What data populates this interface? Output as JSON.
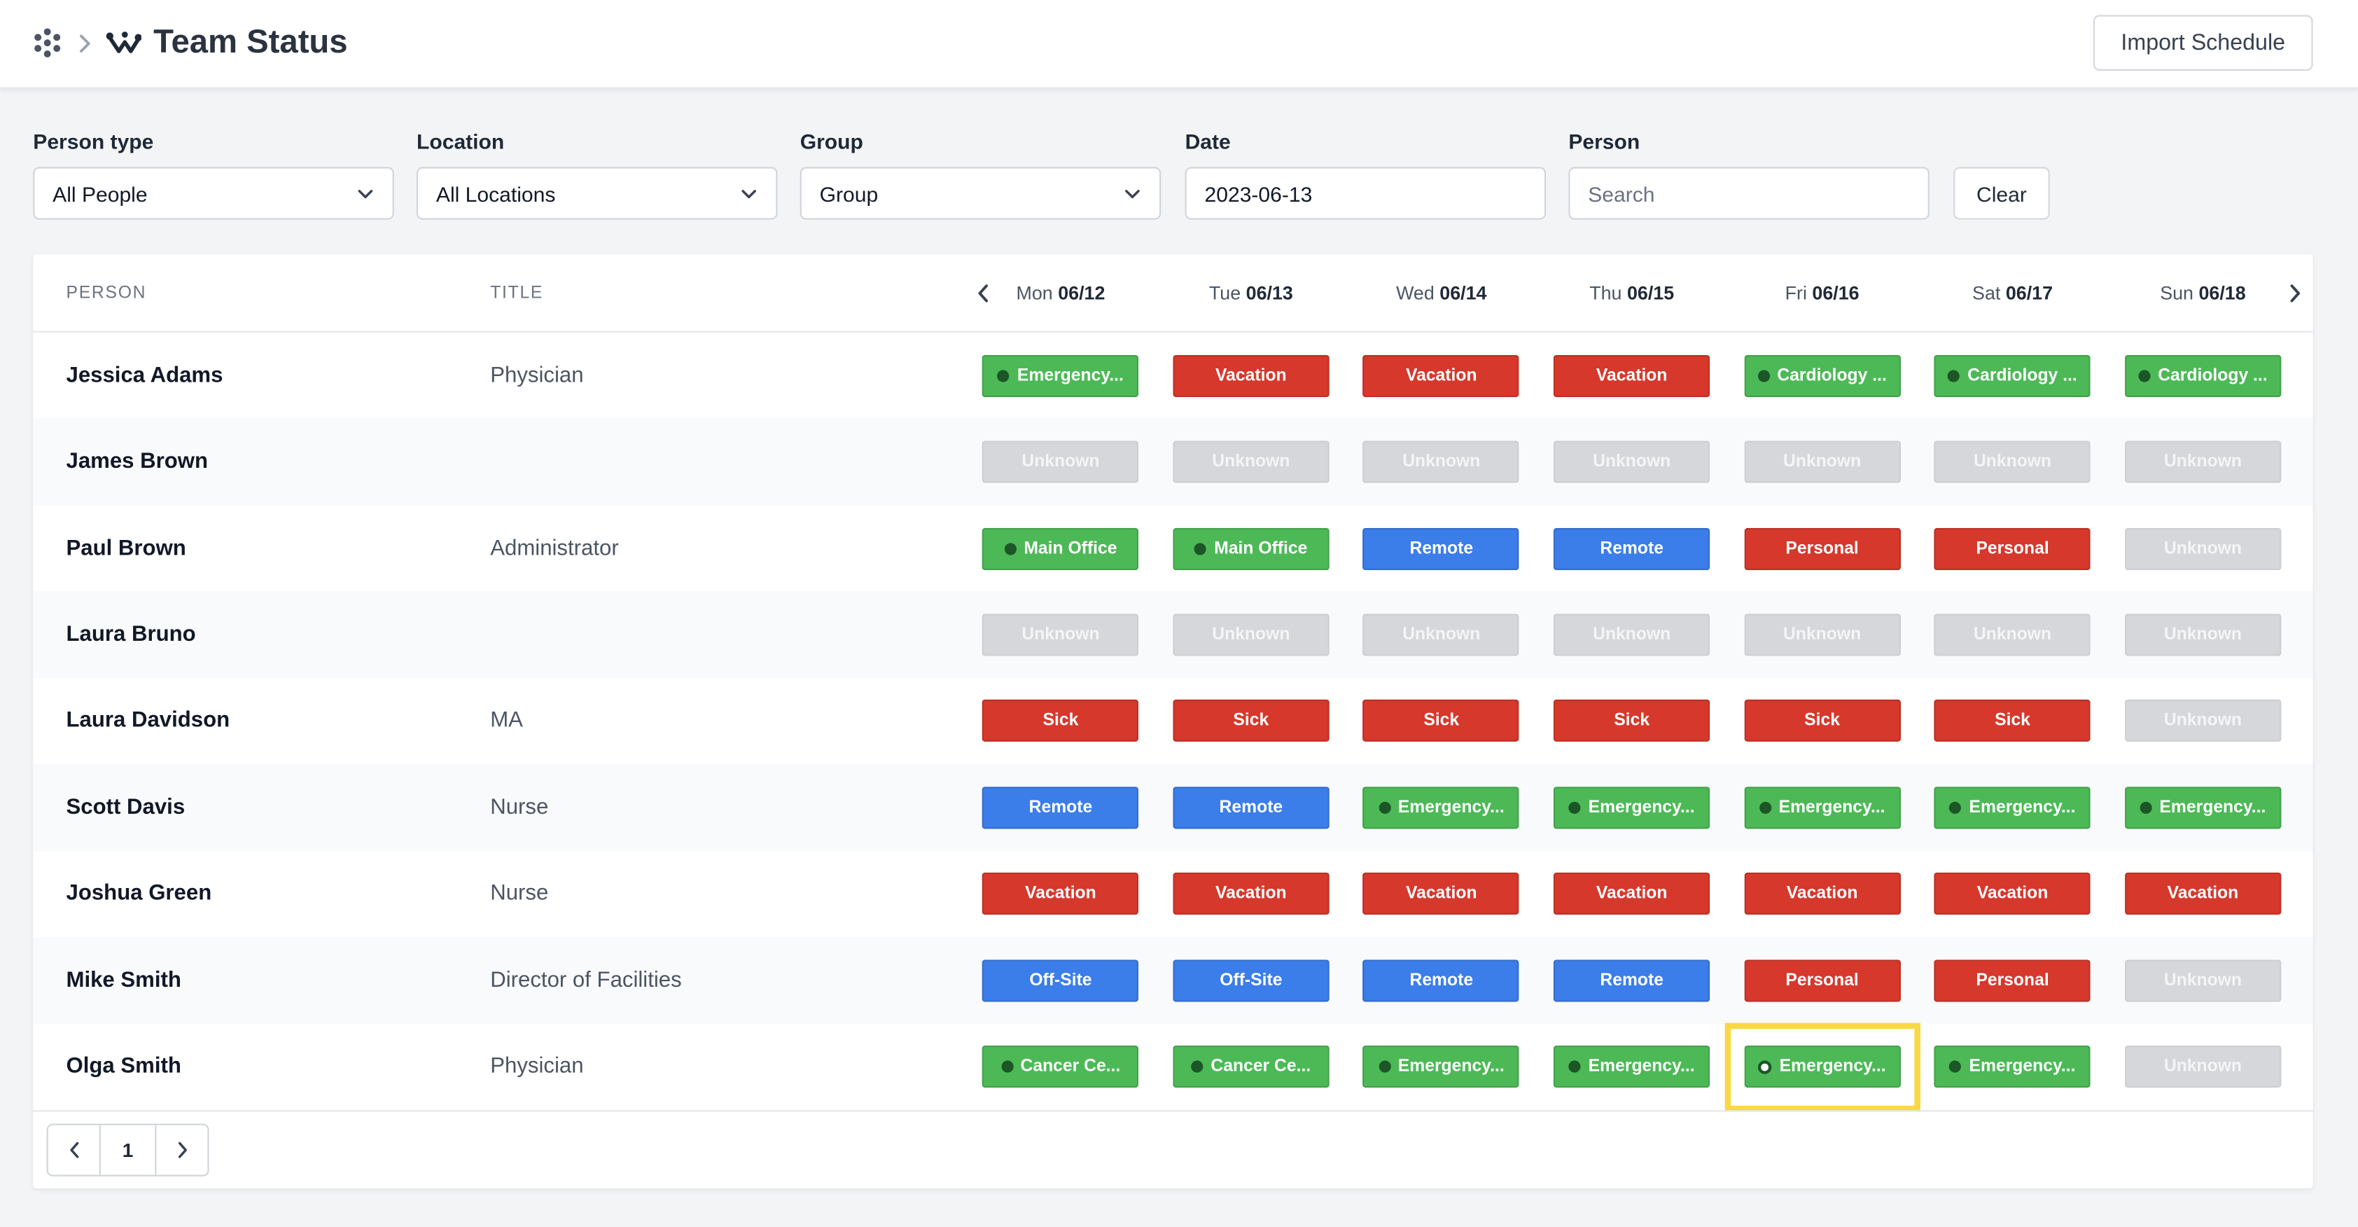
{
  "header": {
    "apps_icon": "grid-dots-icon",
    "breadcrumb_separator_icon": "chevron-right-icon",
    "logo_icon": "team-status-logo-icon",
    "title": "Team Status",
    "import_button": "Import Schedule"
  },
  "filters": {
    "person_type": {
      "label": "Person type",
      "value": "All People"
    },
    "location": {
      "label": "Location",
      "value": "All Locations"
    },
    "group": {
      "label": "Group",
      "value": "Group"
    },
    "date": {
      "label": "Date",
      "value": "2023-06-13"
    },
    "person": {
      "label": "Person",
      "placeholder": "Search"
    },
    "clear_button": "Clear",
    "dropdown_icon": "chevron-down-icon"
  },
  "table": {
    "columns": {
      "person": "PERSON",
      "title": "TITLE"
    },
    "prev_week_icon": "chevron-left-icon",
    "next_week_icon": "chevron-right-icon",
    "days": [
      {
        "day": "Mon",
        "date": "06/12"
      },
      {
        "day": "Tue",
        "date": "06/13"
      },
      {
        "day": "Wed",
        "date": "06/14"
      },
      {
        "day": "Thu",
        "date": "06/15"
      },
      {
        "day": "Fri",
        "date": "06/16"
      },
      {
        "day": "Sat",
        "date": "06/17"
      },
      {
        "day": "Sun",
        "date": "06/18"
      }
    ],
    "rows": [
      {
        "name": "Jessica Adams",
        "title": "Physician",
        "cells": [
          {
            "label": "Emergency...",
            "color": "green"
          },
          {
            "label": "Vacation",
            "color": "red"
          },
          {
            "label": "Vacation",
            "color": "red"
          },
          {
            "label": "Vacation",
            "color": "red"
          },
          {
            "label": "Cardiology ...",
            "color": "green"
          },
          {
            "label": "Cardiology ...",
            "color": "green"
          },
          {
            "label": "Cardiology ...",
            "color": "green"
          }
        ]
      },
      {
        "name": "James Brown",
        "title": "",
        "cells": [
          {
            "label": "Unknown",
            "color": "gray"
          },
          {
            "label": "Unknown",
            "color": "gray"
          },
          {
            "label": "Unknown",
            "color": "gray"
          },
          {
            "label": "Unknown",
            "color": "gray"
          },
          {
            "label": "Unknown",
            "color": "gray"
          },
          {
            "label": "Unknown",
            "color": "gray"
          },
          {
            "label": "Unknown",
            "color": "gray"
          }
        ]
      },
      {
        "name": "Paul Brown",
        "title": "Administrator",
        "cells": [
          {
            "label": "Main Office",
            "color": "green"
          },
          {
            "label": "Main Office",
            "color": "green"
          },
          {
            "label": "Remote",
            "color": "blue"
          },
          {
            "label": "Remote",
            "color": "blue"
          },
          {
            "label": "Personal",
            "color": "red"
          },
          {
            "label": "Personal",
            "color": "red"
          },
          {
            "label": "Unknown",
            "color": "gray"
          }
        ]
      },
      {
        "name": "Laura Bruno",
        "title": "",
        "cells": [
          {
            "label": "Unknown",
            "color": "gray"
          },
          {
            "label": "Unknown",
            "color": "gray"
          },
          {
            "label": "Unknown",
            "color": "gray"
          },
          {
            "label": "Unknown",
            "color": "gray"
          },
          {
            "label": "Unknown",
            "color": "gray"
          },
          {
            "label": "Unknown",
            "color": "gray"
          },
          {
            "label": "Unknown",
            "color": "gray"
          }
        ]
      },
      {
        "name": "Laura Davidson",
        "title": "MA",
        "cells": [
          {
            "label": "Sick",
            "color": "red"
          },
          {
            "label": "Sick",
            "color": "red"
          },
          {
            "label": "Sick",
            "color": "red"
          },
          {
            "label": "Sick",
            "color": "red"
          },
          {
            "label": "Sick",
            "color": "red"
          },
          {
            "label": "Sick",
            "color": "red"
          },
          {
            "label": "Unknown",
            "color": "gray"
          }
        ]
      },
      {
        "name": "Scott Davis",
        "title": "Nurse",
        "cells": [
          {
            "label": "Remote",
            "color": "blue"
          },
          {
            "label": "Remote",
            "color": "blue"
          },
          {
            "label": "Emergency...",
            "color": "green"
          },
          {
            "label": "Emergency...",
            "color": "green"
          },
          {
            "label": "Emergency...",
            "color": "green"
          },
          {
            "label": "Emergency...",
            "color": "green"
          },
          {
            "label": "Emergency...",
            "color": "green"
          }
        ]
      },
      {
        "name": "Joshua Green",
        "title": "Nurse",
        "cells": [
          {
            "label": "Vacation",
            "color": "red"
          },
          {
            "label": "Vacation",
            "color": "red"
          },
          {
            "label": "Vacation",
            "color": "red"
          },
          {
            "label": "Vacation",
            "color": "red"
          },
          {
            "label": "Vacation",
            "color": "red"
          },
          {
            "label": "Vacation",
            "color": "red"
          },
          {
            "label": "Vacation",
            "color": "red"
          }
        ]
      },
      {
        "name": "Mike Smith",
        "title": "Director of Facilities",
        "cells": [
          {
            "label": "Off-Site",
            "color": "blue"
          },
          {
            "label": "Off-Site",
            "color": "blue"
          },
          {
            "label": "Remote",
            "color": "blue"
          },
          {
            "label": "Remote",
            "color": "blue"
          },
          {
            "label": "Personal",
            "color": "red"
          },
          {
            "label": "Personal",
            "color": "red"
          },
          {
            "label": "Unknown",
            "color": "gray"
          }
        ]
      },
      {
        "name": "Olga Smith",
        "title": "Physician",
        "cells": [
          {
            "label": "Cancer Ce...",
            "color": "green"
          },
          {
            "label": "Cancer Ce...",
            "color": "green"
          },
          {
            "label": "Emergency...",
            "color": "green"
          },
          {
            "label": "Emergency...",
            "color": "green"
          },
          {
            "label": "Emergency...",
            "color": "green"
          },
          {
            "label": "Emergency...",
            "color": "green"
          },
          {
            "label": "Unknown",
            "color": "gray"
          }
        ]
      }
    ]
  },
  "pagination": {
    "prev_icon": "chevron-left-icon",
    "current_page": "1",
    "next_icon": "chevron-right-icon"
  },
  "theme": {
    "status_colors": {
      "green": "#4cb956",
      "red": "#d6382c",
      "blue": "#3b7de9",
      "gray": "#d6d7da"
    },
    "highlight": "#f8d844"
  }
}
